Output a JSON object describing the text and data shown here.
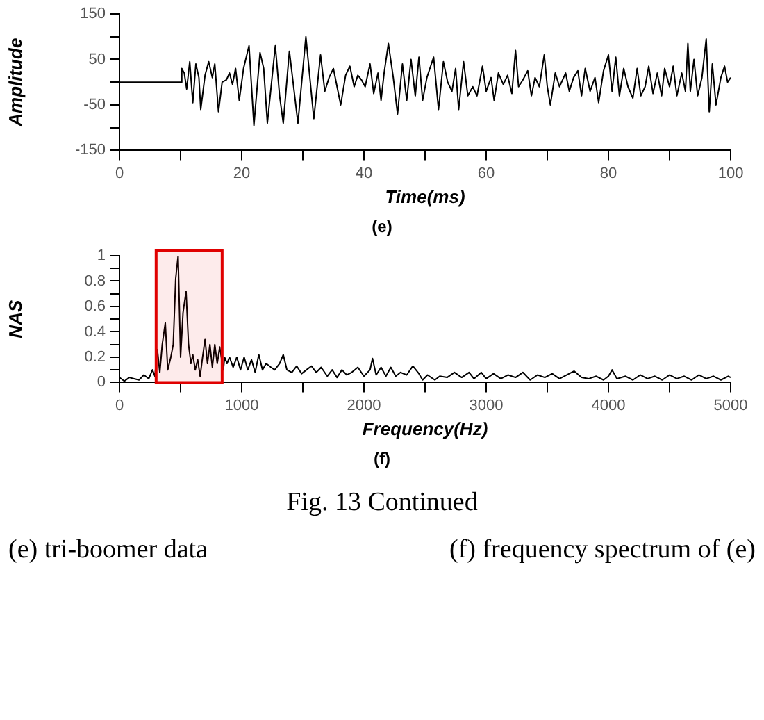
{
  "chart_data": [
    {
      "type": "line",
      "xlabel": "Time(ms)",
      "ylabel": "Amplitude",
      "annotations": [
        "(e)"
      ],
      "grid": false,
      "marker": "none",
      "line_style": "solid",
      "xlim": [
        0,
        100
      ],
      "xticks": [
        0,
        {
          "value": 10,
          "label": null
        },
        20,
        {
          "value": 30,
          "label": null
        },
        40,
        {
          "value": 50,
          "label": null
        },
        60,
        {
          "value": 70,
          "label": null
        },
        80,
        {
          "value": 90,
          "label": null
        },
        100
      ],
      "ylim": [
        -150,
        150
      ],
      "yticks": [
        -150,
        {
          "value": -100,
          "label": null
        },
        {
          "value": -50,
          "label": "-50"
        },
        {
          "value": 0,
          "label": null
        },
        50,
        {
          "value": 100,
          "label": null
        },
        150
      ],
      "series": [
        {
          "color": "#000000",
          "x": [
            0,
            10,
            10.2,
            10.6,
            11,
            11.5,
            12,
            12.5,
            13,
            13.3,
            14,
            14.6,
            15.2,
            15.6,
            16.2,
            16.8,
            17.5,
            18,
            18.5,
            19,
            19.6,
            20.3,
            21.2,
            22,
            23,
            23.6,
            24.2,
            25.5,
            26.2,
            26.8,
            27.8,
            29.2,
            30.5,
            31.8,
            32.9,
            33.6,
            34.3,
            35,
            35.6,
            36.2,
            37,
            37.7,
            38.4,
            39,
            39.6,
            40.2,
            41,
            41.6,
            42.3,
            42.8,
            43.3,
            44,
            44.8,
            45.5,
            46.3,
            47,
            47.7,
            48.4,
            49,
            49.6,
            50.3,
            51.4,
            52.2,
            53,
            53.7,
            54.4,
            55,
            55.5,
            56.3,
            57,
            57.8,
            58.5,
            59.4,
            60,
            60.8,
            61.3,
            62,
            62.8,
            63.5,
            64.2,
            64.8,
            65.3,
            66,
            66.8,
            67.4,
            68,
            68.7,
            69.5,
            70,
            70.5,
            71.3,
            72,
            73,
            73.6,
            74.3,
            75,
            75.6,
            76.2,
            77,
            77.8,
            78.4,
            79.2,
            80,
            80.6,
            81.2,
            81.8,
            82.5,
            83.2,
            84,
            84.7,
            85.3,
            86,
            86.6,
            87.3,
            88,
            88.7,
            89.2,
            90,
            90.6,
            91.2,
            92,
            92.6,
            93,
            93.4,
            94,
            94.6,
            95.3,
            96,
            96.5,
            97,
            97.6,
            98.4,
            99,
            99.5,
            100
          ],
          "values": [
            0,
            0,
            30,
            20,
            -15,
            45,
            -45,
            40,
            10,
            -60,
            15,
            45,
            10,
            40,
            -65,
            0,
            5,
            20,
            -5,
            30,
            -40,
            30,
            80,
            -95,
            65,
            30,
            -90,
            80,
            -30,
            -90,
            68,
            -90,
            100,
            -80,
            60,
            -20,
            10,
            30,
            -10,
            -50,
            15,
            35,
            -10,
            15,
            5,
            -10,
            40,
            -25,
            20,
            -40,
            20,
            85,
            10,
            -70,
            40,
            -40,
            50,
            -30,
            55,
            -40,
            10,
            55,
            -60,
            45,
            0,
            -20,
            30,
            -60,
            45,
            -30,
            -10,
            -30,
            35,
            -20,
            10,
            -40,
            20,
            -5,
            15,
            -25,
            70,
            -10,
            5,
            25,
            -30,
            10,
            -10,
            60,
            -10,
            -50,
            20,
            -10,
            20,
            -20,
            10,
            25,
            -30,
            30,
            -20,
            10,
            -45,
            25,
            60,
            -20,
            55,
            -30,
            30,
            -10,
            -35,
            30,
            -30,
            -10,
            35,
            -25,
            20,
            -30,
            30,
            -10,
            35,
            -30,
            20,
            -20,
            85,
            -20,
            50,
            -30,
            10,
            95,
            -65,
            40,
            -50,
            10,
            35,
            0,
            10
          ]
        }
      ]
    },
    {
      "type": "line",
      "xlabel": "Frequency(Hz)",
      "ylabel": "NAS",
      "annotations": [
        "(f)",
        "Fig. 13 Continued",
        "(e) tri-boomer data",
        "(f) frequency spectrum of (e)"
      ],
      "grid": false,
      "marker": "none",
      "line_style": "solid",
      "xlim": [
        0,
        5000
      ],
      "xticks": [
        0,
        {
          "value": 500,
          "label": null
        },
        1000,
        {
          "value": 1500,
          "label": null
        },
        2000,
        {
          "value": 2500,
          "label": null
        },
        3000,
        {
          "value": 3500,
          "label": null
        },
        4000,
        {
          "value": 4500,
          "label": null
        },
        5000
      ],
      "ylim": [
        0,
        1
      ],
      "yticks": [
        0,
        {
          "value": 0.1,
          "label": null
        },
        0.2,
        {
          "value": 0.3,
          "label": null
        },
        0.4,
        {
          "value": 0.5,
          "label": null
        },
        0.6,
        {
          "value": 0.7,
          "label": null
        },
        0.8,
        {
          "value": 0.9,
          "label": null
        },
        1
      ],
      "bands": [
        {
          "axis": "x",
          "from": 300,
          "to": 840,
          "color": "#e00000"
        }
      ],
      "series": [
        {
          "color": "#000000",
          "x": [
            0,
            40,
            80,
            120,
            160,
            200,
            240,
            270,
            290,
            310,
            330,
            350,
            375,
            395,
            420,
            440,
            460,
            480,
            500,
            520,
            545,
            565,
            585,
            600,
            620,
            640,
            660,
            680,
            700,
            720,
            740,
            760,
            780,
            800,
            820,
            850,
            860,
            880,
            900,
            930,
            960,
            990,
            1020,
            1050,
            1080,
            1110,
            1140,
            1170,
            1200,
            1240,
            1270,
            1310,
            1340,
            1370,
            1410,
            1450,
            1490,
            1530,
            1570,
            1610,
            1650,
            1700,
            1740,
            1780,
            1820,
            1860,
            1900,
            1950,
            2000,
            2050,
            2070,
            2100,
            2140,
            2180,
            2220,
            2260,
            2300,
            2350,
            2400,
            2450,
            2480,
            2520,
            2580,
            2620,
            2680,
            2740,
            2800,
            2860,
            2900,
            2960,
            3000,
            3060,
            3120,
            3180,
            3240,
            3300,
            3360,
            3420,
            3480,
            3540,
            3600,
            3660,
            3720,
            3780,
            3840,
            3900,
            3960,
            4000,
            4030,
            4070,
            4140,
            4200,
            4260,
            4320,
            4380,
            4440,
            4500,
            4560,
            4620,
            4680,
            4740,
            4800,
            4860,
            4920,
            4980,
            5000
          ],
          "values": [
            0.04,
            0.01,
            0.04,
            0.03,
            0.02,
            0.06,
            0.03,
            0.1,
            0.05,
            0.26,
            0.08,
            0.3,
            0.47,
            0.1,
            0.2,
            0.3,
            0.82,
            1.0,
            0.2,
            0.55,
            0.72,
            0.3,
            0.15,
            0.22,
            0.1,
            0.18,
            0.05,
            0.2,
            0.34,
            0.15,
            0.3,
            0.12,
            0.3,
            0.15,
            0.28,
            0.1,
            0.2,
            0.15,
            0.2,
            0.12,
            0.2,
            0.1,
            0.2,
            0.1,
            0.18,
            0.08,
            0.22,
            0.1,
            0.15,
            0.12,
            0.1,
            0.15,
            0.22,
            0.1,
            0.08,
            0.13,
            0.07,
            0.1,
            0.13,
            0.08,
            0.12,
            0.05,
            0.1,
            0.04,
            0.1,
            0.06,
            0.08,
            0.12,
            0.05,
            0.1,
            0.19,
            0.06,
            0.12,
            0.05,
            0.12,
            0.05,
            0.08,
            0.06,
            0.13,
            0.07,
            0.02,
            0.06,
            0.02,
            0.05,
            0.04,
            0.08,
            0.04,
            0.08,
            0.03,
            0.08,
            0.03,
            0.07,
            0.03,
            0.06,
            0.04,
            0.08,
            0.02,
            0.06,
            0.04,
            0.07,
            0.03,
            0.06,
            0.09,
            0.04,
            0.03,
            0.05,
            0.02,
            0.05,
            0.1,
            0.03,
            0.05,
            0.02,
            0.06,
            0.03,
            0.05,
            0.02,
            0.06,
            0.03,
            0.05,
            0.02,
            0.06,
            0.03,
            0.05,
            0.02,
            0.05,
            0.04
          ]
        }
      ]
    }
  ]
}
